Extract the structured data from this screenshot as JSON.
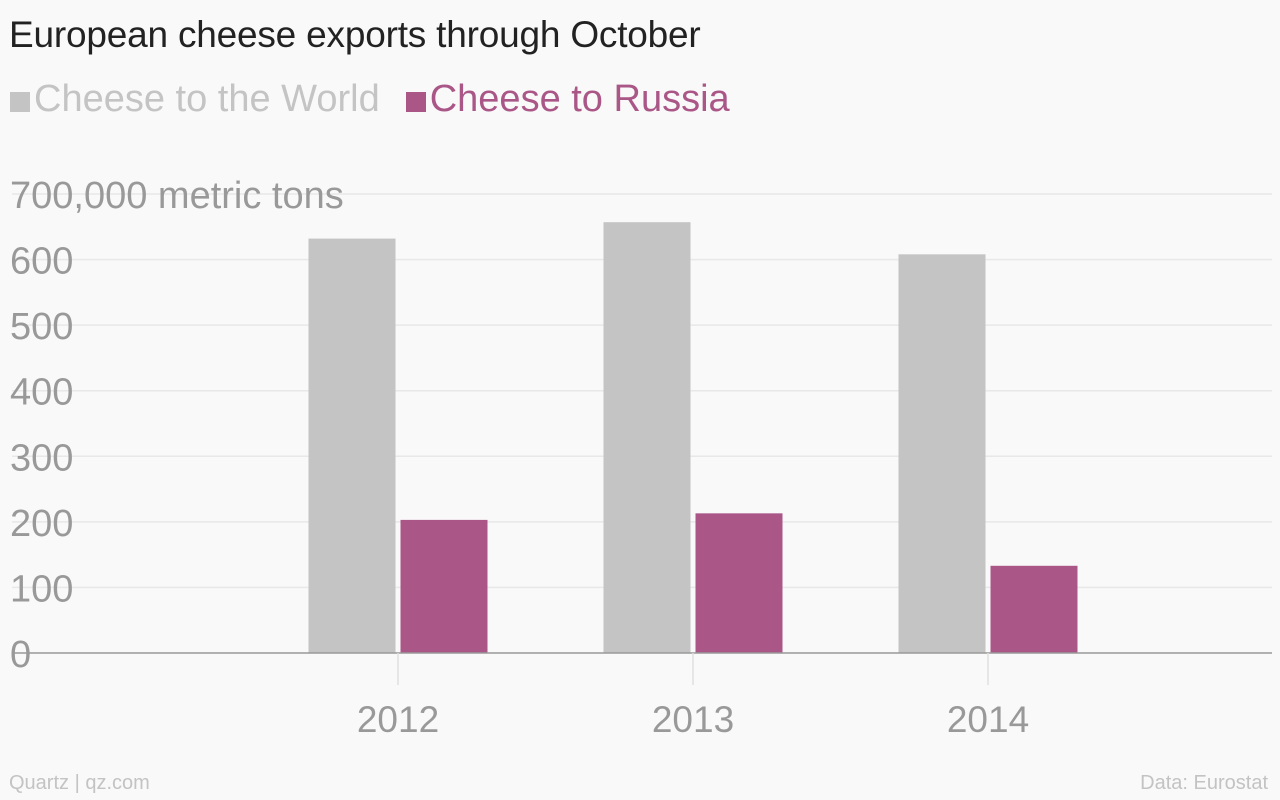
{
  "chart_data": {
    "type": "bar",
    "title": "European cheese exports through October",
    "categories": [
      "2012",
      "2013",
      "2014"
    ],
    "series": [
      {
        "name": "Cheese to the World",
        "color": "#c4c4c4",
        "values": [
          632000,
          657000,
          608000
        ]
      },
      {
        "name": "Cheese to Russia",
        "color": "#aa5788",
        "values": [
          203000,
          213000,
          133000
        ]
      }
    ],
    "y_tick_labels": [
      "0",
      "100",
      "200",
      "300",
      "400",
      "500",
      "600",
      "700,000 metric tons"
    ],
    "y_tick_values": [
      0,
      100000,
      200000,
      300000,
      400000,
      500000,
      600000,
      700000
    ],
    "ylim": [
      0,
      700000
    ],
    "grid": true,
    "legend_position": "top-left"
  },
  "footer": {
    "source_left": "Quartz | qz.com",
    "source_right": "Data: Eurostat"
  }
}
